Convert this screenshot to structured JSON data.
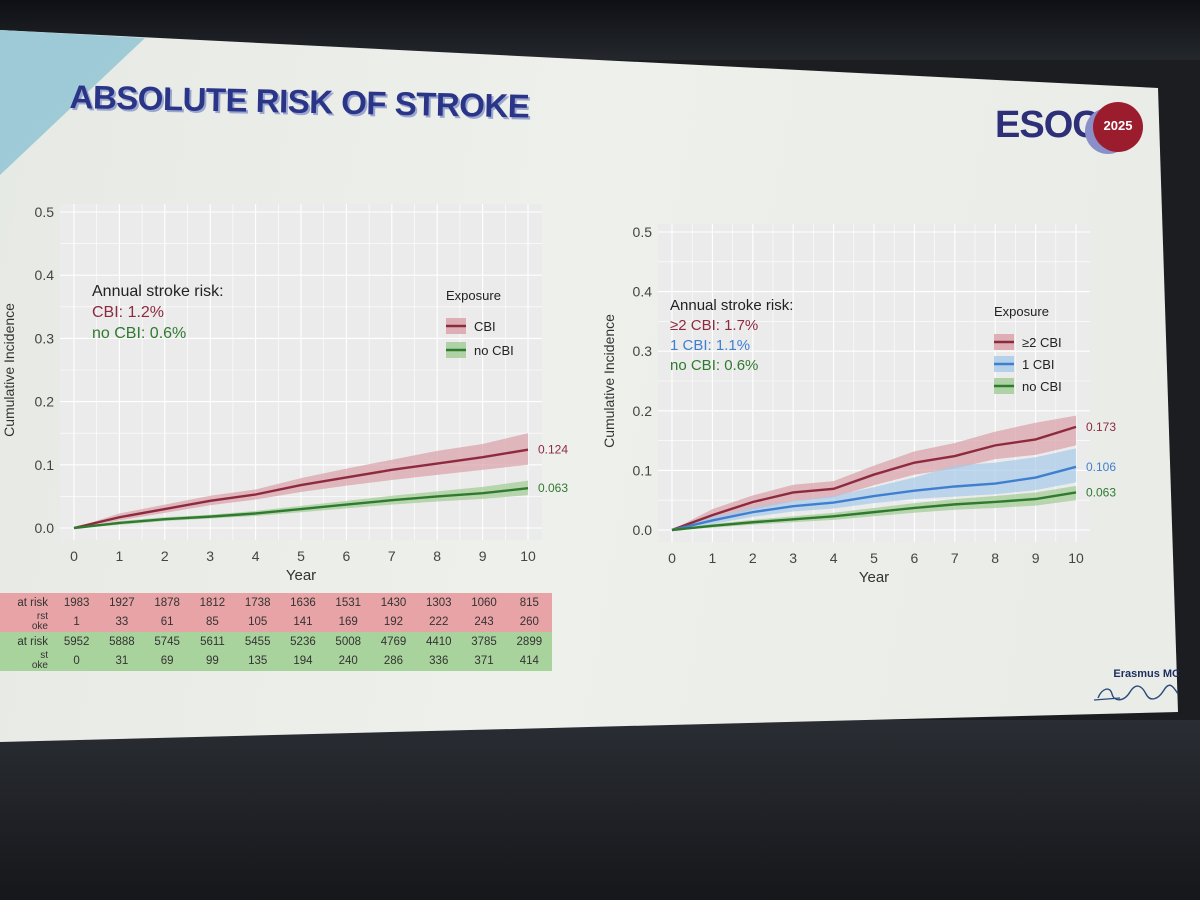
{
  "slide": {
    "title": "ABSOLUTE RISK OF STROKE",
    "logo": {
      "brand": "ESOC",
      "year": "2025"
    },
    "institution": "Erasmus MC",
    "signature": "Erasmus"
  },
  "colors": {
    "cbi": "#8e2a3f",
    "cbi_band": "#d9a0a6",
    "one_cbi": "#3f7fd0",
    "one_cbi_band": "#a8cbe8",
    "no_cbi": "#2f7a2f",
    "no_cbi_band": "#9fcc93",
    "title": "#2a3587"
  },
  "chart_data": [
    {
      "type": "line",
      "xlabel": "Year",
      "ylabel": "Cumulative Incidence",
      "x": [
        0,
        1,
        2,
        3,
        4,
        5,
        6,
        7,
        8,
        9,
        10
      ],
      "xlim": [
        0,
        10
      ],
      "ylim": [
        0,
        0.5
      ],
      "xticks": [
        "0",
        "1",
        "2",
        "3",
        "4",
        "5",
        "6",
        "7",
        "8",
        "9",
        "10"
      ],
      "yticks": [
        "0.0",
        "0.1",
        "0.2",
        "0.3",
        "0.4",
        "0.5"
      ],
      "grid": true,
      "annotation": {
        "heading": "Annual stroke risk:",
        "lines": [
          {
            "text": "CBI: 1.2%",
            "color": "#8e2a3f"
          },
          {
            "text": "no CBI: 0.6%",
            "color": "#2f7a2f"
          }
        ]
      },
      "legend": {
        "title": "Exposure",
        "placement": "top-right"
      },
      "series": [
        {
          "name": "CBI",
          "color": "#8e2a3f",
          "band": "#d9a0a6",
          "values": [
            0,
            0.017,
            0.03,
            0.043,
            0.053,
            0.068,
            0.08,
            0.092,
            0.102,
            0.112,
            0.124
          ],
          "lower": [
            0,
            0.012,
            0.024,
            0.036,
            0.045,
            0.057,
            0.067,
            0.076,
            0.084,
            0.092,
            0.1
          ],
          "upper": [
            0,
            0.023,
            0.037,
            0.051,
            0.061,
            0.079,
            0.094,
            0.108,
            0.122,
            0.133,
            0.15
          ],
          "end_label": "0.124"
        },
        {
          "name": "no CBI",
          "color": "#2f7a2f",
          "band": "#9fcc93",
          "values": [
            0,
            0.008,
            0.014,
            0.018,
            0.023,
            0.03,
            0.037,
            0.044,
            0.05,
            0.055,
            0.063
          ],
          "lower": [
            0,
            0.005,
            0.011,
            0.015,
            0.019,
            0.025,
            0.031,
            0.037,
            0.042,
            0.046,
            0.052
          ],
          "upper": [
            0,
            0.011,
            0.017,
            0.021,
            0.027,
            0.035,
            0.043,
            0.051,
            0.058,
            0.065,
            0.075
          ],
          "end_label": "0.063"
        }
      ],
      "risk_table": {
        "counts": [
          {
            "label": "at risk",
            "group": "CBI",
            "values": [
              "1983",
              "1927",
              "1878",
              "1812",
              "1738",
              "1636",
              "1531",
              "1430",
              "1303",
              "1060",
              "815"
            ]
          },
          {
            "label": "rst\noke",
            "group": "CBI",
            "values": [
              "1",
              "33",
              "61",
              "85",
              "105",
              "141",
              "169",
              "192",
              "222",
              "243",
              "260"
            ]
          },
          {
            "label": "at risk",
            "group": "no CBI",
            "values": [
              "5952",
              "5888",
              "5745",
              "5611",
              "5455",
              "5236",
              "5008",
              "4769",
              "4410",
              "3785",
              "2899"
            ]
          },
          {
            "label": "st\noke",
            "group": "no CBI",
            "values": [
              "0",
              "31",
              "69",
              "99",
              "135",
              "194",
              "240",
              "286",
              "336",
              "371",
              "414"
            ]
          }
        ]
      }
    },
    {
      "type": "line",
      "xlabel": "Year",
      "ylabel": "Cumulative Incidence",
      "x": [
        0,
        1,
        2,
        3,
        4,
        5,
        6,
        7,
        8,
        9,
        10
      ],
      "xlim": [
        0,
        10
      ],
      "ylim": [
        0,
        0.5
      ],
      "xticks": [
        "0",
        "1",
        "2",
        "3",
        "4",
        "5",
        "6",
        "7",
        "8",
        "9",
        "10"
      ],
      "yticks": [
        "0.0",
        "0.1",
        "0.2",
        "0.3",
        "0.4",
        "0.5"
      ],
      "grid": true,
      "annotation": {
        "heading": "Annual stroke risk:",
        "lines": [
          {
            "text": "≥2 CBI: 1.7%",
            "color": "#8e2a3f"
          },
          {
            "text": "1 CBI: 1.1%",
            "color": "#3f7fd0"
          },
          {
            "text": "no CBI: 0.6%",
            "color": "#2f7a2f"
          }
        ]
      },
      "legend": {
        "title": "Exposure",
        "placement": "top-right"
      },
      "series": [
        {
          "name": "≥2 CBI",
          "color": "#8e2a3f",
          "band": "#d9a0a6",
          "values": [
            0,
            0.025,
            0.047,
            0.063,
            0.069,
            0.093,
            0.113,
            0.124,
            0.142,
            0.152,
            0.173
          ],
          "lower": [
            0,
            0.015,
            0.034,
            0.048,
            0.055,
            0.075,
            0.093,
            0.103,
            0.119,
            0.126,
            0.142
          ],
          "upper": [
            0,
            0.035,
            0.058,
            0.076,
            0.082,
            0.108,
            0.132,
            0.146,
            0.165,
            0.18,
            0.192
          ],
          "end_label": "0.173"
        },
        {
          "name": "1 CBI",
          "color": "#3f7fd0",
          "band": "#a8cbe8",
          "values": [
            0,
            0.016,
            0.03,
            0.04,
            0.046,
            0.057,
            0.066,
            0.073,
            0.078,
            0.088,
            0.106
          ],
          "lower": [
            0,
            0.01,
            0.022,
            0.031,
            0.036,
            0.045,
            0.052,
            0.056,
            0.06,
            0.067,
            0.08
          ],
          "upper": [
            0,
            0.022,
            0.038,
            0.049,
            0.057,
            0.072,
            0.088,
            0.108,
            0.113,
            0.122,
            0.137
          ],
          "end_label": "0.106"
        },
        {
          "name": "no CBI",
          "color": "#2f7a2f",
          "band": "#9fcc93",
          "values": [
            0,
            0.007,
            0.013,
            0.018,
            0.023,
            0.03,
            0.037,
            0.043,
            0.047,
            0.052,
            0.063
          ],
          "lower": [
            0,
            0.004,
            0.009,
            0.013,
            0.017,
            0.023,
            0.029,
            0.034,
            0.037,
            0.041,
            0.05
          ],
          "upper": [
            0,
            0.01,
            0.017,
            0.023,
            0.029,
            0.037,
            0.045,
            0.052,
            0.057,
            0.063,
            0.074
          ],
          "end_label": "0.063"
        }
      ]
    }
  ]
}
